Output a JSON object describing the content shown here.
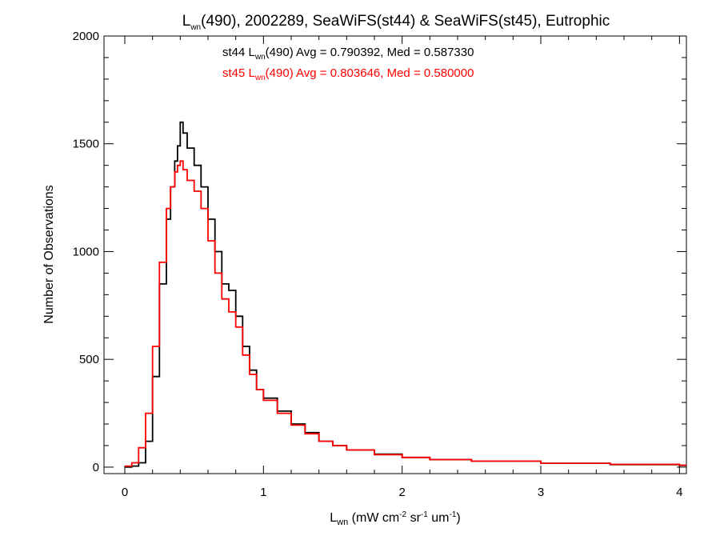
{
  "chart_data": {
    "type": "line",
    "step": true,
    "title": {
      "main": "L",
      "sub": "wn",
      "rest": "(490), 2002289, SeaWiFS(st44) & SeaWiFS(st45), Eutrophic"
    },
    "xlabel": {
      "main": "L",
      "sub": "wn",
      "p1": " (mW cm",
      "sup1": "-2",
      "p2": " sr",
      "sup2": "-1",
      "p3": " um",
      "sup3": "-1",
      "p4": ")"
    },
    "ylabel": "Number of Observations",
    "xlim": [
      -0.15,
      4.05
    ],
    "ylim": [
      -30,
      2000
    ],
    "xticks": [
      0,
      1,
      2,
      3,
      4
    ],
    "xtick_labels": [
      "0",
      "1",
      "2",
      "3",
      "4"
    ],
    "yticks": [
      0,
      500,
      1000,
      1500,
      2000
    ],
    "ytick_labels": [
      "0",
      "500",
      "1000",
      "1500",
      "2000"
    ],
    "series": [
      {
        "name": "st44",
        "color": "#000000",
        "legend": {
          "pre": "st44 L",
          "sub": "wn",
          "post": "(490) Avg = 0.790392, Med = 0.587330"
        },
        "x": [
          0.0,
          0.05,
          0.1,
          0.15,
          0.2,
          0.25,
          0.3,
          0.33,
          0.36,
          0.38,
          0.4,
          0.42,
          0.45,
          0.5,
          0.55,
          0.6,
          0.65,
          0.7,
          0.75,
          0.8,
          0.85,
          0.9,
          0.95,
          1.0,
          1.1,
          1.2,
          1.3,
          1.4,
          1.5,
          1.6,
          1.8,
          2.0,
          2.2,
          2.5,
          3.0,
          3.5,
          4.0,
          4.05
        ],
        "y": [
          0,
          5,
          20,
          120,
          420,
          850,
          1150,
          1300,
          1420,
          1490,
          1600,
          1550,
          1480,
          1400,
          1300,
          1150,
          1000,
          850,
          820,
          700,
          560,
          450,
          360,
          320,
          260,
          200,
          160,
          120,
          100,
          80,
          60,
          45,
          35,
          28,
          18,
          12,
          8,
          8
        ]
      },
      {
        "name": "st45",
        "color": "#ff0000",
        "legend": {
          "pre": "st45 L",
          "sub": "wn",
          "post": "(490) Avg = 0.803646, Med = 0.580000"
        },
        "x": [
          0.0,
          0.05,
          0.1,
          0.15,
          0.2,
          0.25,
          0.3,
          0.33,
          0.36,
          0.38,
          0.4,
          0.42,
          0.45,
          0.5,
          0.55,
          0.6,
          0.65,
          0.7,
          0.75,
          0.8,
          0.85,
          0.9,
          0.95,
          1.0,
          1.1,
          1.2,
          1.3,
          1.4,
          1.5,
          1.6,
          1.8,
          2.0,
          2.2,
          2.5,
          3.0,
          3.5,
          4.0,
          4.05
        ],
        "y": [
          5,
          20,
          90,
          250,
          560,
          950,
          1200,
          1300,
          1370,
          1400,
          1420,
          1380,
          1330,
          1280,
          1200,
          1050,
          900,
          780,
          720,
          650,
          520,
          430,
          360,
          310,
          250,
          195,
          155,
          120,
          100,
          80,
          58,
          45,
          35,
          28,
          18,
          13,
          9,
          9
        ]
      }
    ]
  }
}
